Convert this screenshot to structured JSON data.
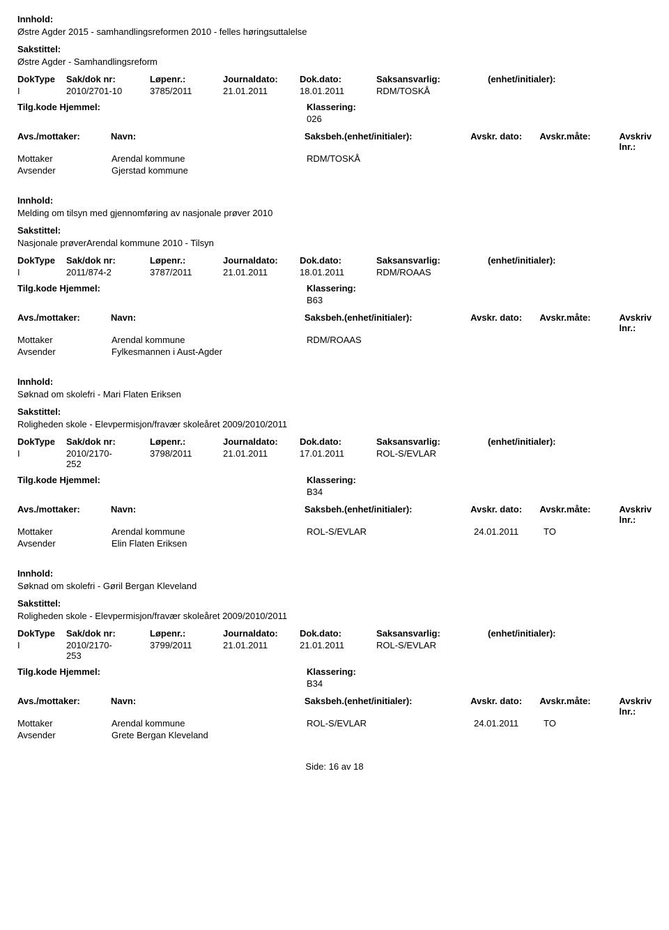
{
  "labels": {
    "innhold": "Innhold:",
    "sakstittel": "Sakstittel:",
    "doktype": "DokType",
    "sakdoknr": "Sak/dok nr:",
    "lopenr": "Løpenr.:",
    "journaldato": "Journaldato:",
    "dokdato": "Dok.dato:",
    "saksansvarlig": "Saksansvarlig:",
    "enhet": "(enhet/initialer):",
    "tilgkode": "Tilg.kode",
    "hjemmel": "Hjemmel:",
    "klassering": "Klassering:",
    "avsmottaker": "Avs./mottaker:",
    "navn": "Navn:",
    "saksbeh": "Saksbeh.(enhet/initialer):",
    "avskr_dato": "Avskr. dato:",
    "avskr_mate": "Avskr.måte:",
    "avskriv_lnr": "Avskriv lnr.:",
    "mottaker": "Mottaker",
    "avsender": "Avsender"
  },
  "records": [
    {
      "innhold": "Østre Agder 2015 - samhandlingsreformen 2010 - felles høringsuttalelse",
      "sakstittel": "Østre Agder - Samhandlingsreform",
      "doktype": "I",
      "sakdok": "2010/2701-10",
      "lopenr": "3785/2011",
      "journaldato": "21.01.2011",
      "dokdato": "18.01.2011",
      "saksansvarlig": "RDM/TOSKÅ",
      "enhet": "",
      "tilgkode": "",
      "hjemmel": "",
      "klassering": "026",
      "parties": [
        {
          "role": "Mottaker",
          "navn": "Arendal kommune",
          "saksbeh": "RDM/TOSKÅ",
          "avskr_dato": "",
          "avskr_mate": ""
        },
        {
          "role": "Avsender",
          "navn": "Gjerstad kommune",
          "saksbeh": "",
          "avskr_dato": "",
          "avskr_mate": ""
        }
      ]
    },
    {
      "innhold": "Melding om tilsyn med gjennomføring av nasjonale prøver 2010",
      "sakstittel": "Nasjonale prøverArendal kommune 2010  - Tilsyn",
      "doktype": "I",
      "sakdok": "2011/874-2",
      "lopenr": "3787/2011",
      "journaldato": "21.01.2011",
      "dokdato": "18.01.2011",
      "saksansvarlig": "RDM/ROAAS",
      "enhet": "",
      "tilgkode": "",
      "hjemmel": "",
      "klassering": "B63",
      "parties": [
        {
          "role": "Mottaker",
          "navn": "Arendal kommune",
          "saksbeh": "RDM/ROAAS",
          "avskr_dato": "",
          "avskr_mate": ""
        },
        {
          "role": "Avsender",
          "navn": "Fylkesmannen i Aust-Agder",
          "saksbeh": "",
          "avskr_dato": "",
          "avskr_mate": ""
        }
      ]
    },
    {
      "innhold": "Søknad om skolefri - Mari Flaten Eriksen",
      "sakstittel": "Roligheden skole - Elevpermisjon/fravær skoleåret 2009/2010/2011",
      "doktype": "I",
      "sakdok": "2010/2170-252",
      "lopenr": "3798/2011",
      "journaldato": "21.01.2011",
      "dokdato": "17.01.2011",
      "saksansvarlig": "ROL-S/EVLAR",
      "enhet": "",
      "tilgkode": "",
      "hjemmel": "",
      "klassering": "B34",
      "parties": [
        {
          "role": "Mottaker",
          "navn": "Arendal kommune",
          "saksbeh": "ROL-S/EVLAR",
          "avskr_dato": "24.01.2011",
          "avskr_mate": "TO"
        },
        {
          "role": "Avsender",
          "navn": "Elin Flaten Eriksen",
          "saksbeh": "",
          "avskr_dato": "",
          "avskr_mate": ""
        }
      ]
    },
    {
      "innhold": "Søknad om skolefri - Gøril Bergan Kleveland",
      "sakstittel": "Roligheden skole - Elevpermisjon/fravær skoleåret 2009/2010/2011",
      "doktype": "I",
      "sakdok": "2010/2170-253",
      "lopenr": "3799/2011",
      "journaldato": "21.01.2011",
      "dokdato": "21.01.2011",
      "saksansvarlig": "ROL-S/EVLAR",
      "enhet": "",
      "tilgkode": "",
      "hjemmel": "",
      "klassering": "B34",
      "parties": [
        {
          "role": "Mottaker",
          "navn": "Arendal kommune",
          "saksbeh": "ROL-S/EVLAR",
          "avskr_dato": "24.01.2011",
          "avskr_mate": "TO"
        },
        {
          "role": "Avsender",
          "navn": "Grete Bergan Kleveland",
          "saksbeh": "",
          "avskr_dato": "",
          "avskr_mate": ""
        }
      ]
    }
  ],
  "footer": {
    "side_label": "Side:",
    "current": "16",
    "av": "av",
    "total": "18"
  }
}
